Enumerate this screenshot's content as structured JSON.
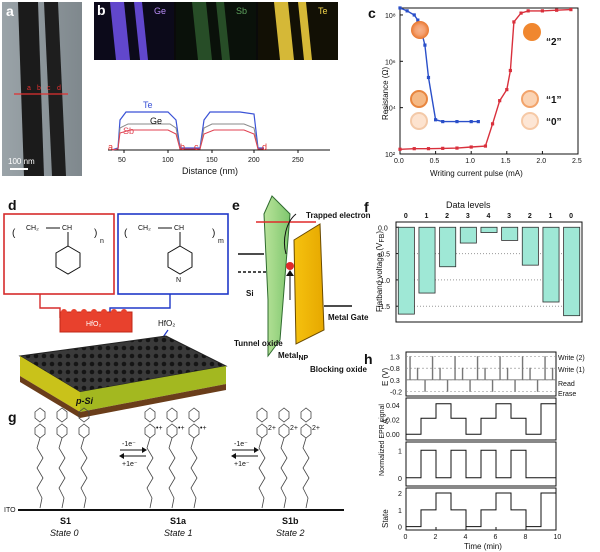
{
  "panels": {
    "a": {
      "label": "a",
      "scale_bar": "100 nm",
      "markers": [
        "a",
        "b",
        "c",
        "d"
      ]
    },
    "b": {
      "label": "b",
      "maps": [
        {
          "label": "Ge",
          "color": "#7b5cf0"
        },
        {
          "label": "Sb",
          "color": "#3d7d3d"
        },
        {
          "label": "Te",
          "color": "#e6c63a"
        }
      ],
      "profile_labels": {
        "te": "Te",
        "ge": "Ge",
        "sb": "Sb"
      },
      "markers": [
        "a",
        "b",
        "c",
        "d"
      ],
      "xlabel": "Distance (nm)",
      "xticks": [
        "50",
        "100",
        "150",
        "200",
        "250"
      ]
    },
    "c": {
      "label": "c",
      "ylabel": "Resistance (Ω)",
      "xlabel": "Writing current pulse (mA)",
      "xticks": [
        "0.0",
        "0.5",
        "1.0",
        "1.5",
        "2.0",
        "2.5"
      ],
      "yticks": [
        "10²",
        "10⁴",
        "10⁶",
        "10⁸"
      ],
      "state_labels": [
        "“2”",
        "“1”",
        "“0”"
      ],
      "series": [
        {
          "name": "blue",
          "color": "#2a4fc9",
          "x": [
            0.0,
            0.1,
            0.2,
            0.25,
            0.3,
            0.35,
            0.4,
            0.5,
            0.6,
            0.8,
            1.0,
            1.1
          ],
          "y": [
            200000000,
            150000000,
            100000000,
            60000000,
            20000000,
            5000000,
            200000,
            3000,
            2500,
            2500,
            2500,
            2500
          ]
        },
        {
          "name": "red",
          "color": "#d9303c",
          "x": [
            0.0,
            0.2,
            0.4,
            0.6,
            0.8,
            1.0,
            1.2,
            1.3,
            1.4,
            1.5,
            1.55,
            1.6,
            1.7,
            1.8,
            2.0,
            2.2,
            2.4
          ],
          "y": [
            160,
            170,
            170,
            175,
            180,
            200,
            220,
            2000,
            20000,
            60000,
            400000,
            50000000,
            120000000,
            150000000,
            150000000,
            160000000,
            170000000
          ]
        }
      ]
    },
    "d": {
      "label": "d",
      "hfo2_label": "HfO₂",
      "hfo2_arrow_label": "HfO₂",
      "substrate_label": "p-Si",
      "chem": {
        "ch2": "CH₂",
        "ch": "CH",
        "n": "n",
        "m": "m",
        "N": "N"
      }
    },
    "e": {
      "label": "e",
      "trapped": "Trapped electron",
      "si": "Si",
      "tunnel": "Tunnel oxide",
      "metal_np": "Metal",
      "metal_np_sub": "NP",
      "metal_gate": "Metal Gate",
      "blocking": "Blocking oxide"
    },
    "f": {
      "label": "f",
      "title": "Data levels",
      "ylabel": "Flatband voltage (V",
      "ylabel_sub": "FB",
      "ylabel_end": ")",
      "yticks": [
        "0.0",
        "-0.5",
        "-1.0",
        "-1.5"
      ]
    },
    "g": {
      "label": "g",
      "ito": "ITO",
      "structures": [
        {
          "name": "S1",
          "state": "State 0"
        },
        {
          "name": "S1a",
          "state": "State 1"
        },
        {
          "name": "S1b",
          "state": "State 2"
        }
      ],
      "redox": {
        "minus": "-1e⁻",
        "plus": "+1e⁻"
      }
    },
    "h": {
      "label": "h",
      "e_ylabel": "E (V)",
      "e_yticks": [
        "1.3",
        "0.8",
        "0.3",
        "-0.2"
      ],
      "a_ylabel": "A",
      "a_yticks": [
        "0.04",
        "0.02",
        "0.00"
      ],
      "epr_ylabel": "Normalized EPR signal",
      "epr_yticks": [
        "1",
        "0"
      ],
      "state_ylabel": "State",
      "state_yticks": [
        "2",
        "1",
        "0"
      ],
      "xlabel": "Time (min)",
      "xticks": [
        "0",
        "2",
        "4",
        "6",
        "8",
        "10"
      ],
      "annotations": [
        "Write (2)",
        "Write (1)",
        "Read",
        "Erase"
      ]
    }
  },
  "chart_data": [
    {
      "type": "bar",
      "title": "Data levels",
      "ylabel": "Flatband voltage (VFB)",
      "categories": [
        "0",
        "1",
        "2",
        "3",
        "4",
        "3",
        "2",
        "1",
        "0"
      ],
      "values": [
        -1.65,
        -1.25,
        -0.75,
        -0.3,
        -0.1,
        -0.25,
        -0.72,
        -1.42,
        -1.68
      ],
      "ylim": [
        -1.8,
        0.1
      ],
      "color": "#9fe8d6"
    },
    {
      "type": "line",
      "ylabel": "State",
      "xlabel": "Time (min)",
      "x": [
        0,
        1,
        1,
        2,
        2,
        3,
        3,
        4,
        4,
        5,
        5,
        6,
        6,
        7,
        7,
        8,
        8,
        9,
        9,
        10
      ],
      "values": [
        0,
        0,
        1,
        1,
        2,
        2,
        1,
        1,
        0,
        0,
        1,
        1,
        2,
        2,
        1,
        1,
        0,
        0,
        2,
        2
      ],
      "ylim": [
        -0.2,
        2.3
      ]
    }
  ]
}
